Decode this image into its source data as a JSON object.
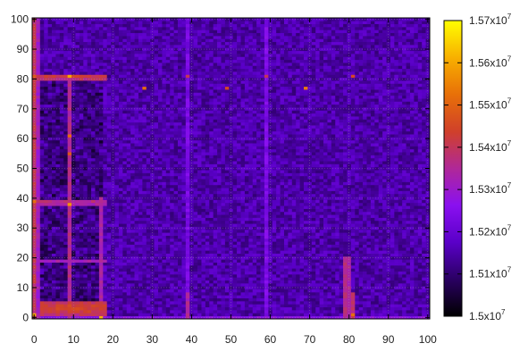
{
  "chart_data": {
    "type": "heatmap",
    "title": "",
    "xlabel": "",
    "ylabel": "",
    "xlim": [
      0,
      100
    ],
    "ylim": [
      0,
      100
    ],
    "x_ticks": [
      "0",
      "10",
      "20",
      "30",
      "40",
      "50",
      "60",
      "70",
      "80",
      "90",
      "100"
    ],
    "y_ticks": [
      "0",
      "10",
      "20",
      "30",
      "40",
      "50",
      "60",
      "70",
      "80",
      "90",
      "100"
    ],
    "grid": true,
    "colorbar": {
      "range": [
        15000000,
        15700000
      ],
      "ticks": [
        {
          "value": 15000000,
          "mantissa": "1.5x10",
          "exp": "7"
        },
        {
          "value": 15100000,
          "mantissa": "1.51x10",
          "exp": "7"
        },
        {
          "value": 15200000,
          "mantissa": "1.52x10",
          "exp": "7"
        },
        {
          "value": 15300000,
          "mantissa": "1.53x10",
          "exp": "7"
        },
        {
          "value": 15400000,
          "mantissa": "1.54x10",
          "exp": "7"
        },
        {
          "value": 15500000,
          "mantissa": "1.55x10",
          "exp": "7"
        },
        {
          "value": 15600000,
          "mantissa": "1.56x10",
          "exp": "7"
        },
        {
          "value": 15700000,
          "mantissa": "1.57x10",
          "exp": "7"
        }
      ],
      "placement": "right",
      "colormap": [
        "#000000",
        "#2a0062",
        "#5a00c8",
        "#8a10f0",
        "#b02898",
        "#d0402a",
        "#e87008",
        "#f8b000",
        "#ffff00"
      ]
    },
    "grid_size": [
      101,
      101
    ],
    "base_value": 15150000,
    "hot_rows": [
      {
        "y": 81,
        "x_range": [
          0,
          18
        ],
        "value": 15420000
      },
      {
        "y": 80,
        "x_range": [
          0,
          18
        ],
        "value": 15380000
      },
      {
        "y": 39,
        "x_range": [
          0,
          18
        ],
        "value": 15360000
      },
      {
        "y": 38,
        "x_range": [
          0,
          18
        ],
        "value": 15330000
      },
      {
        "y": 5,
        "x_range": [
          2,
          18
        ],
        "value": 15400000
      },
      {
        "y": 4,
        "x_range": [
          2,
          18
        ],
        "value": 15430000
      },
      {
        "y": 3,
        "x_range": [
          2,
          18
        ],
        "value": 15440000
      },
      {
        "y": 2,
        "x_range": [
          2,
          18
        ],
        "value": 15420000
      },
      {
        "y": 1,
        "x_range": [
          2,
          18
        ],
        "value": 15380000
      },
      {
        "y": 19,
        "x_range": [
          0,
          18
        ],
        "value": 15320000
      },
      {
        "y": 0,
        "x_range": [
          0,
          100
        ],
        "value": 15260000
      }
    ],
    "hot_cols": [
      {
        "x": 0,
        "y_range": [
          0,
          100
        ],
        "value": 15400000
      },
      {
        "x": 1,
        "y_range": [
          0,
          100
        ],
        "value": 15310000
      },
      {
        "x": 9,
        "y_range": [
          0,
          81
        ],
        "value": 15360000
      },
      {
        "x": 17,
        "y_range": [
          0,
          40
        ],
        "value": 15330000
      },
      {
        "x": 79,
        "y_range": [
          0,
          20
        ],
        "value": 15360000
      },
      {
        "x": 80,
        "y_range": [
          0,
          20
        ],
        "value": 15340000
      },
      {
        "x": 81,
        "y_range": [
          0,
          8
        ],
        "value": 15390000
      },
      {
        "x": 39,
        "y_range": [
          0,
          8
        ],
        "value": 15340000
      },
      {
        "x": 59,
        "y_range": [
          0,
          100
        ],
        "value": 15240000
      },
      {
        "x": 39,
        "y_range": [
          0,
          100
        ],
        "value": 15230000
      }
    ],
    "hot_spots": [
      {
        "x": 9,
        "y": 81,
        "value": 15600000
      },
      {
        "x": 9,
        "y": 38,
        "value": 15580000
      },
      {
        "x": 9,
        "y": 61,
        "value": 15520000
      },
      {
        "x": 9,
        "y": 55,
        "value": 15480000
      },
      {
        "x": 17,
        "y": 0,
        "value": 15620000
      },
      {
        "x": 0,
        "y": 1,
        "value": 15600000
      },
      {
        "x": 0,
        "y": 39,
        "value": 15520000
      },
      {
        "x": 0,
        "y": 81,
        "value": 15480000
      },
      {
        "x": 28,
        "y": 77,
        "value": 15520000
      },
      {
        "x": 69,
        "y": 77,
        "value": 15540000
      },
      {
        "x": 49,
        "y": 77,
        "value": 15450000
      },
      {
        "x": 81,
        "y": 81,
        "value": 15450000
      },
      {
        "x": 81,
        "y": 1,
        "value": 15520000
      },
      {
        "x": 39,
        "y": 81,
        "value": 15400000
      },
      {
        "x": 59,
        "y": 81,
        "value": 15400000
      }
    ]
  }
}
